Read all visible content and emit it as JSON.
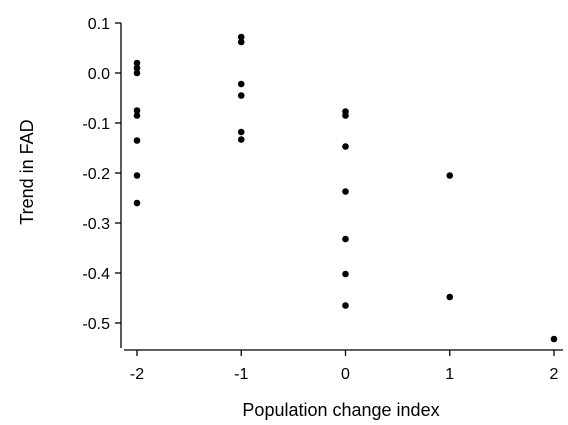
{
  "chart_data": {
    "type": "scatter",
    "title": "",
    "xlabel": "Population change index",
    "ylabel": "Trend in FAD",
    "xlim": [
      -2.2,
      2.1
    ],
    "ylim": [
      -0.555,
      0.105
    ],
    "xticks": [
      {
        "value": -2,
        "label": "-2"
      },
      {
        "value": -1,
        "label": "-1"
      },
      {
        "value": 0,
        "label": "0"
      },
      {
        "value": 1,
        "label": "1"
      },
      {
        "value": 2,
        "label": "2"
      }
    ],
    "yticks": [
      {
        "value": 0.1,
        "label": "0.1"
      },
      {
        "value": 0.0,
        "label": "0.0"
      },
      {
        "value": -0.1,
        "label": "-0.1"
      },
      {
        "value": -0.2,
        "label": "-0.2"
      },
      {
        "value": -0.3,
        "label": "-0.3"
      },
      {
        "value": -0.4,
        "label": "-0.4"
      },
      {
        "value": -0.5,
        "label": "-0.5"
      }
    ],
    "grid": false,
    "colors": {
      "marker": "#000000",
      "axis": "#000000"
    },
    "points": [
      {
        "x": -2,
        "y": 0.02
      },
      {
        "x": -2,
        "y": 0.01
      },
      {
        "x": -2,
        "y": 0.0
      },
      {
        "x": -2,
        "y": -0.075
      },
      {
        "x": -2,
        "y": -0.085
      },
      {
        "x": -2,
        "y": -0.135
      },
      {
        "x": -2,
        "y": -0.205
      },
      {
        "x": -2,
        "y": -0.26
      },
      {
        "x": -1,
        "y": 0.072
      },
      {
        "x": -1,
        "y": 0.062
      },
      {
        "x": -1,
        "y": -0.022
      },
      {
        "x": -1,
        "y": -0.045
      },
      {
        "x": -1,
        "y": -0.118
      },
      {
        "x": -1,
        "y": -0.133
      },
      {
        "x": 0,
        "y": -0.077
      },
      {
        "x": 0,
        "y": -0.085
      },
      {
        "x": 0,
        "y": -0.147
      },
      {
        "x": 0,
        "y": -0.237
      },
      {
        "x": 0,
        "y": -0.332
      },
      {
        "x": 0,
        "y": -0.402
      },
      {
        "x": 0,
        "y": -0.465
      },
      {
        "x": 1,
        "y": -0.205
      },
      {
        "x": 1,
        "y": -0.448
      },
      {
        "x": 2,
        "y": -0.532
      }
    ]
  }
}
